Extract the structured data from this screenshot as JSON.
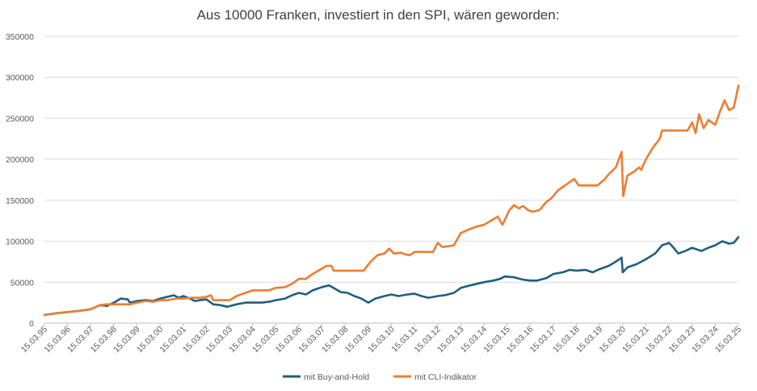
{
  "chart_data": {
    "type": "line",
    "title": "Aus 10000 Franken, investiert in den SPI, wären geworden:",
    "xlabel": "",
    "ylabel": "",
    "x_tick_labels": [
      "15.03.95",
      "15.03.96",
      "15.03.97",
      "15.03.98",
      "15.03.99",
      "15.03.00",
      "15.03.01",
      "15.03.02",
      "15.03.03",
      "15.03.04",
      "15.03.05",
      "15.03.06",
      "15.03.07",
      "15.03.08",
      "15.03.09",
      "15.03.10",
      "15.03.11",
      "15.03.12",
      "15.03.13",
      "15.03.14",
      "15.03.15",
      "15.03.16",
      "15.03.17",
      "15.03.18",
      "15.03.19",
      "15.03.20",
      "15.03.21",
      "15.03.22",
      "15.03.23",
      "15.03.24",
      "15.03.25"
    ],
    "xlim": [
      1995.2,
      2025.2
    ],
    "y_ticks": [
      0,
      50000,
      100000,
      150000,
      200000,
      250000,
      300000,
      350000
    ],
    "y_tick_labels": [
      "0",
      "50000",
      "100000",
      "150000",
      "200000",
      "250000",
      "300000",
      "350000"
    ],
    "ylim": [
      0,
      350000
    ],
    "grid": true,
    "legend_position": "bottom",
    "series": [
      {
        "name": "mit Buy-and-Hold",
        "color": "#1f5f80",
        "points": [
          [
            1995.2,
            10000
          ],
          [
            1995.7,
            12000
          ],
          [
            1996.2,
            13500
          ],
          [
            1996.7,
            15000
          ],
          [
            1997.2,
            17000
          ],
          [
            1997.6,
            22000
          ],
          [
            1997.9,
            21000
          ],
          [
            1998.2,
            25000
          ],
          [
            1998.5,
            30000
          ],
          [
            1998.8,
            29000
          ],
          [
            1998.9,
            25000
          ],
          [
            1999.2,
            27000
          ],
          [
            1999.6,
            28000
          ],
          [
            1999.9,
            27000
          ],
          [
            2000.2,
            30000
          ],
          [
            2000.5,
            32000
          ],
          [
            2000.8,
            34000
          ],
          [
            2001.0,
            31000
          ],
          [
            2001.2,
            33000
          ],
          [
            2001.5,
            30000
          ],
          [
            2001.7,
            27000
          ],
          [
            2001.9,
            28000
          ],
          [
            2002.2,
            29000
          ],
          [
            2002.5,
            23000
          ],
          [
            2002.8,
            22000
          ],
          [
            2003.1,
            20000
          ],
          [
            2003.5,
            23000
          ],
          [
            2003.9,
            25000
          ],
          [
            2004.2,
            25000
          ],
          [
            2004.6,
            25000
          ],
          [
            2004.9,
            26000
          ],
          [
            2005.2,
            28000
          ],
          [
            2005.6,
            30000
          ],
          [
            2005.9,
            34000
          ],
          [
            2006.2,
            37000
          ],
          [
            2006.5,
            35000
          ],
          [
            2006.8,
            40000
          ],
          [
            2007.2,
            44000
          ],
          [
            2007.5,
            46000
          ],
          [
            2007.7,
            43000
          ],
          [
            2008.0,
            38000
          ],
          [
            2008.3,
            37000
          ],
          [
            2008.6,
            33000
          ],
          [
            2008.9,
            30000
          ],
          [
            2009.2,
            25000
          ],
          [
            2009.5,
            30000
          ],
          [
            2009.9,
            33000
          ],
          [
            2010.2,
            35000
          ],
          [
            2010.5,
            33000
          ],
          [
            2010.9,
            35000
          ],
          [
            2011.2,
            36000
          ],
          [
            2011.5,
            33000
          ],
          [
            2011.8,
            31000
          ],
          [
            2012.2,
            33000
          ],
          [
            2012.5,
            34000
          ],
          [
            2012.9,
            37000
          ],
          [
            2013.2,
            43000
          ],
          [
            2013.6,
            46000
          ],
          [
            2013.9,
            48000
          ],
          [
            2014.2,
            50000
          ],
          [
            2014.6,
            52000
          ],
          [
            2014.9,
            54000
          ],
          [
            2015.1,
            57000
          ],
          [
            2015.5,
            56000
          ],
          [
            2015.9,
            53000
          ],
          [
            2016.2,
            52000
          ],
          [
            2016.5,
            52000
          ],
          [
            2016.9,
            55000
          ],
          [
            2017.2,
            60000
          ],
          [
            2017.6,
            62000
          ],
          [
            2017.9,
            65000
          ],
          [
            2018.2,
            64000
          ],
          [
            2018.6,
            65000
          ],
          [
            2018.9,
            62000
          ],
          [
            2019.2,
            66000
          ],
          [
            2019.6,
            70000
          ],
          [
            2019.9,
            75000
          ],
          [
            2020.15,
            80000
          ],
          [
            2020.2,
            62000
          ],
          [
            2020.4,
            68000
          ],
          [
            2020.8,
            72000
          ],
          [
            2021.2,
            78000
          ],
          [
            2021.6,
            85000
          ],
          [
            2021.9,
            95000
          ],
          [
            2022.2,
            98000
          ],
          [
            2022.4,
            92000
          ],
          [
            2022.6,
            85000
          ],
          [
            2022.9,
            88000
          ],
          [
            2023.2,
            92000
          ],
          [
            2023.6,
            88000
          ],
          [
            2023.9,
            92000
          ],
          [
            2024.2,
            95000
          ],
          [
            2024.5,
            100000
          ],
          [
            2024.8,
            97000
          ],
          [
            2025.0,
            98000
          ],
          [
            2025.2,
            105000
          ]
        ]
      },
      {
        "name": "mit CLI-Indikator",
        "color": "#ed7d31",
        "points": [
          [
            1995.2,
            10000
          ],
          [
            1995.7,
            12000
          ],
          [
            1996.2,
            13500
          ],
          [
            1996.7,
            15000
          ],
          [
            1997.2,
            17000
          ],
          [
            1997.6,
            22000
          ],
          [
            1997.9,
            23000
          ],
          [
            1998.2,
            23000
          ],
          [
            1998.6,
            23000
          ],
          [
            1998.9,
            23000
          ],
          [
            1999.2,
            25000
          ],
          [
            1999.6,
            27000
          ],
          [
            1999.9,
            26000
          ],
          [
            2000.2,
            28000
          ],
          [
            2000.5,
            28000
          ],
          [
            2000.9,
            30000
          ],
          [
            2001.2,
            30000
          ],
          [
            2001.6,
            31000
          ],
          [
            2001.9,
            31000
          ],
          [
            2002.2,
            32000
          ],
          [
            2002.4,
            34000
          ],
          [
            2002.5,
            28000
          ],
          [
            2002.8,
            28000
          ],
          [
            2003.2,
            28000
          ],
          [
            2003.5,
            33000
          ],
          [
            2003.9,
            37000
          ],
          [
            2004.2,
            40000
          ],
          [
            2004.6,
            40000
          ],
          [
            2004.9,
            40000
          ],
          [
            2005.2,
            43000
          ],
          [
            2005.6,
            44000
          ],
          [
            2005.9,
            48000
          ],
          [
            2006.2,
            54000
          ],
          [
            2006.5,
            54000
          ],
          [
            2006.8,
            60000
          ],
          [
            2007.1,
            65000
          ],
          [
            2007.4,
            70000
          ],
          [
            2007.6,
            70000
          ],
          [
            2007.7,
            64000
          ],
          [
            2008.2,
            64000
          ],
          [
            2008.6,
            64000
          ],
          [
            2009.0,
            64000
          ],
          [
            2009.3,
            75000
          ],
          [
            2009.6,
            83000
          ],
          [
            2009.9,
            85000
          ],
          [
            2010.1,
            91000
          ],
          [
            2010.3,
            85000
          ],
          [
            2010.6,
            86000
          ],
          [
            2010.8,
            84000
          ],
          [
            2011.0,
            83000
          ],
          [
            2011.2,
            87000
          ],
          [
            2011.6,
            87000
          ],
          [
            2012.0,
            87000
          ],
          [
            2012.2,
            98000
          ],
          [
            2012.4,
            93000
          ],
          [
            2012.7,
            94000
          ],
          [
            2012.9,
            95000
          ],
          [
            2013.2,
            110000
          ],
          [
            2013.6,
            115000
          ],
          [
            2013.9,
            118000
          ],
          [
            2014.2,
            120000
          ],
          [
            2014.5,
            125000
          ],
          [
            2014.8,
            130000
          ],
          [
            2015.0,
            120000
          ],
          [
            2015.3,
            138000
          ],
          [
            2015.5,
            144000
          ],
          [
            2015.7,
            140000
          ],
          [
            2015.9,
            143000
          ],
          [
            2016.1,
            138000
          ],
          [
            2016.3,
            136000
          ],
          [
            2016.6,
            138000
          ],
          [
            2016.9,
            148000
          ],
          [
            2017.1,
            152000
          ],
          [
            2017.4,
            162000
          ],
          [
            2017.7,
            168000
          ],
          [
            2017.9,
            172000
          ],
          [
            2018.1,
            176000
          ],
          [
            2018.3,
            168000
          ],
          [
            2018.7,
            168000
          ],
          [
            2019.1,
            168000
          ],
          [
            2019.4,
            175000
          ],
          [
            2019.6,
            182000
          ],
          [
            2019.9,
            190000
          ],
          [
            2020.15,
            209000
          ],
          [
            2020.22,
            155000
          ],
          [
            2020.4,
            180000
          ],
          [
            2020.7,
            185000
          ],
          [
            2020.9,
            190000
          ],
          [
            2021.0,
            187000
          ],
          [
            2021.2,
            200000
          ],
          [
            2021.5,
            214000
          ],
          [
            2021.8,
            225000
          ],
          [
            2021.9,
            235000
          ],
          [
            2022.3,
            235000
          ],
          [
            2022.7,
            235000
          ],
          [
            2023.0,
            235000
          ],
          [
            2023.2,
            245000
          ],
          [
            2023.35,
            232000
          ],
          [
            2023.5,
            255000
          ],
          [
            2023.7,
            238000
          ],
          [
            2023.9,
            248000
          ],
          [
            2024.2,
            242000
          ],
          [
            2024.4,
            258000
          ],
          [
            2024.6,
            272000
          ],
          [
            2024.8,
            260000
          ],
          [
            2025.0,
            263000
          ],
          [
            2025.2,
            290000
          ]
        ]
      }
    ]
  }
}
